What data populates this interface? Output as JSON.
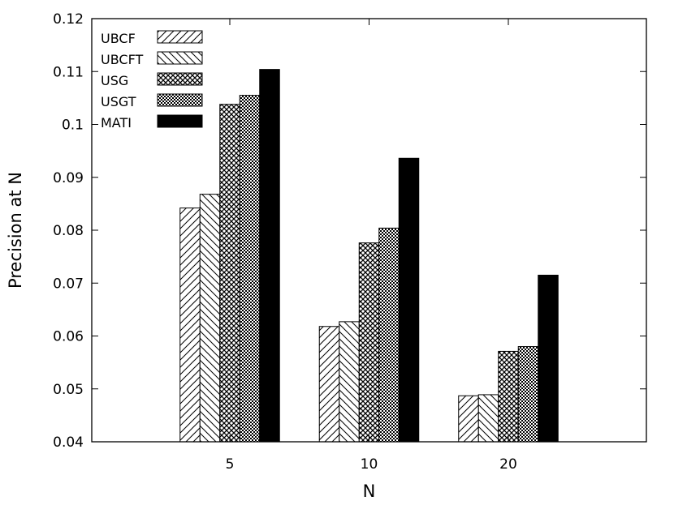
{
  "chart_data": {
    "type": "bar",
    "xlabel": "N",
    "ylabel": "Precision at N",
    "categories": [
      "5",
      "10",
      "20"
    ],
    "ylim": [
      0.04,
      0.12
    ],
    "yticks": [
      "0.04",
      "0.05",
      "0.06",
      "0.07",
      "0.08",
      "0.09",
      "0.1",
      "0.11",
      "0.12"
    ],
    "legend_position": "top-left",
    "grid": false,
    "series": [
      {
        "name": "UBCF",
        "pattern": "diag-right",
        "values": [
          0.0842,
          0.0618,
          0.0487
        ]
      },
      {
        "name": "UBCFT",
        "pattern": "diag-left",
        "values": [
          0.0868,
          0.0627,
          0.0489
        ]
      },
      {
        "name": "USG",
        "pattern": "crosshatch",
        "values": [
          0.1038,
          0.0776,
          0.0571
        ]
      },
      {
        "name": "USGT",
        "pattern": "fine-check",
        "values": [
          0.1055,
          0.0804,
          0.058
        ]
      },
      {
        "name": "MATI",
        "pattern": "solid",
        "color": "#000000",
        "values": [
          0.1104,
          0.0936,
          0.0715
        ]
      }
    ]
  }
}
